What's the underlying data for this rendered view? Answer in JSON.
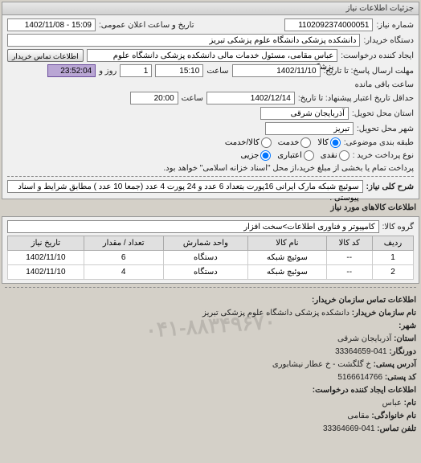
{
  "panel1": {
    "title": "جزئیات اطلاعات نیاز",
    "need_no_label": "شماره نیاز:",
    "need_no": "1102092374000051",
    "pub_datetime_label": "تاریخ و ساعت اعلان عمومی:",
    "pub_datetime": "15:09 - 1402/11/08",
    "buyer_label": "دستگاه خریدار:",
    "buyer": "دانشکده پزشکی دانشگاه علوم پزشکی تبریز",
    "requester_label": "ایجاد کننده درخواست:",
    "requester": "عباس مقامی، مسئول خدمات مالی دانشکده پزشکی دانشگاه علوم پزشکی تبریز",
    "contact_btn": "اطلاعات تماس خریدار",
    "deadline_label": "مهلت ارسال پاسخ: تا تاریخ:",
    "deadline_date": "1402/11/10",
    "time_label": "ساعت",
    "deadline_time": "15:10",
    "days_remaining": "1",
    "days_remaining_label": "روز و",
    "time_remaining": "23:52:04",
    "time_remaining_label": "ساعت باقی مانده",
    "validity_label": "حداقل تاریخ اعتبار پیشنهاد: تا تاریخ:",
    "validity_date": "1402/12/14",
    "validity_time": "20:00",
    "province_label": "استان محل تحویل:",
    "province": "آذربایجان شرقی",
    "city_label": "شهر محل تحویل:",
    "city": "تبریز",
    "category_label": "طبقه بندی موضوعی:",
    "category_options": {
      "goods": "کالا",
      "service": "خدمت",
      "both": "کالا/خدمت"
    },
    "payment_label": "نوع پرداخت خرید :",
    "payment_options": {
      "cash": "نقدی",
      "credit": "اعتباری",
      "partial": "جزیی"
    },
    "payment_note": "پرداخت تمام یا بخشی از مبلغ خرید،از محل \"اسناد خزانه اسلامی\" خواهد بود."
  },
  "desc": {
    "label": "شرح کلی نیاز:",
    "text": "سوئیچ شبکه مارک ایرانی 16پورت بتعداد 6 عدد و 24 پورت 4 عدد (جمعا 10 عدد ) مطابق شرایط و اسناد پیوستی ."
  },
  "goods": {
    "section_title": "اطلاعات کالاهای مورد نیاز",
    "group_label": "گروه کالا:",
    "group": "کامپیوتر و فناوری اطلاعات>سخت افزار",
    "columns": {
      "row": "ردیف",
      "code": "کد کالا",
      "name": "نام کالا",
      "unit": "واحد شمارش",
      "qty": "تعداد / مقدار",
      "date": "تاریخ نیاز"
    },
    "rows": [
      {
        "row": "1",
        "code": "--",
        "name": "سوئیچ شبکه",
        "unit": "دستگاه",
        "qty": "6",
        "date": "1402/11/10"
      },
      {
        "row": "2",
        "code": "--",
        "name": "سوئیچ شبکه",
        "unit": "دستگاه",
        "qty": "4",
        "date": "1402/11/10"
      }
    ]
  },
  "watermark": "۰۴۱-۸۸۳۴۹۶۷۰",
  "contact": {
    "title": "اطلاعات تماس سازمان خریدار:",
    "org_label": "نام سازمان خریدار:",
    "org": "دانشکده پزشکی دانشگاه علوم پزشکی تبریز",
    "city_label": "شهر:",
    "city": "",
    "province_label": "استان:",
    "province": "آذربایجان شرقی",
    "fax_label": "دورنگار:",
    "fax": "041-33364659",
    "postal_addr_label": "آدرس پستی:",
    "postal_addr": "خ گلگشت - خ عطار نیشابوری",
    "postal_code_label": "کد پستی:",
    "postal_code": "5166614766",
    "creator_title": "اطلاعات ایجاد کننده درخواست:",
    "name_label": "نام:",
    "name": "عباس",
    "family_label": "نام خانوادگی:",
    "family": "مقامی",
    "tel_label": "تلفن تماس:",
    "tel": "041-33364669"
  },
  "colors": {
    "panel_border": "#999999",
    "panel_bg": "#f0f0f0",
    "field_bg": "#ffffff",
    "field_border": "#888888",
    "highlight_bg": "#b9a6d4",
    "table_header_bg": "#e0e0e0"
  }
}
